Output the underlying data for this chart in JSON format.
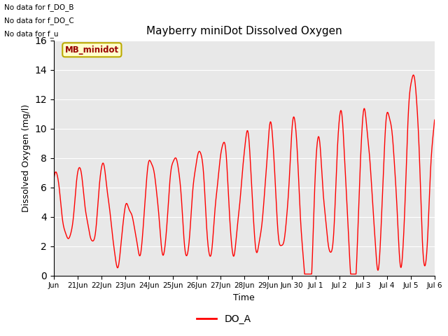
{
  "title": "Mayberry miniDot Dissolved Oxygen",
  "ylabel": "Dissolved Oxygen (mg/l)",
  "xlabel": "Time",
  "legend_label": "DO_A",
  "line_color": "#ff0000",
  "bg_color": "#e8e8e8",
  "ylim": [
    0,
    16
  ],
  "yticks": [
    0,
    2,
    4,
    6,
    8,
    10,
    12,
    14,
    16
  ],
  "no_data_texts": [
    "No data for f_DO_B",
    "No data for f_DO_C",
    "No data for f_u"
  ],
  "annotation_box_text": "MB_minidot",
  "annotation_box_color": "#ffffcc",
  "annotation_box_edge_color": "#bbaa00",
  "xtick_labels": [
    "Jun",
    "21Jun",
    "22Jun",
    "23Jun",
    "24Jun",
    "25Jun",
    "26Jun",
    "27Jun",
    "28Jun",
    "29Jun",
    "Jun 30",
    "Jul 1",
    "Jul 2",
    "Jul 3",
    "Jul 4",
    "Jul 5",
    "Jul 6"
  ],
  "figsize": [
    6.4,
    4.8
  ],
  "dpi": 100
}
